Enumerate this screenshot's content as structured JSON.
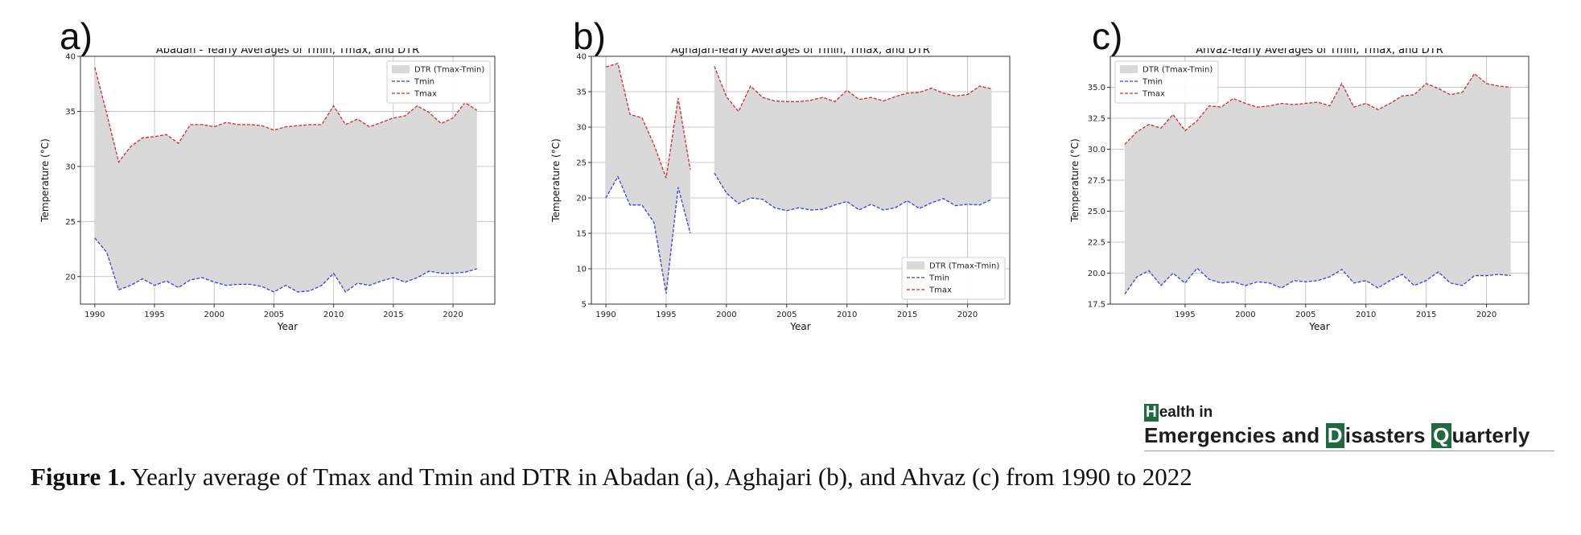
{
  "figure": {
    "caption_lead": "Figure 1.",
    "caption_text": " Yearly average of Tmax and Tmin and DTR in Abadan (a), Aghajari (b), and Ahvaz (c) from 1990 to 2022",
    "logo": {
      "line1_initial": "H",
      "line1_rest": "ealth in",
      "line2_a": "Emergencies and ",
      "line2_b_initial": "D",
      "line2_b_rest": "isasters ",
      "line2_c_initial": "Q",
      "line2_c_rest": "uarterly"
    }
  },
  "colors": {
    "tmin": "#3b3fd8",
    "tmax": "#d62a2a",
    "fill": "#d9d9d9",
    "grid": "#b9b9b9"
  },
  "chart_data": [
    {
      "type": "area",
      "panel_label": "a)",
      "title": "Abadan - Yearly Averages of Tmin, Tmax, and DTR",
      "xlabel": "Year",
      "ylabel": "Temperature (°C)",
      "xlim": [
        1988.8,
        2023.5
      ],
      "ylim": [
        17.5,
        40
      ],
      "xticks": [
        1990,
        1995,
        2000,
        2005,
        2010,
        2015,
        2020
      ],
      "yticks": [
        20,
        25,
        30,
        35,
        40
      ],
      "legend_position": "top-right",
      "legend": [
        "DTR (Tmax-Tmin)",
        "Tmin",
        "Tmax"
      ],
      "grid": true,
      "x": [
        1990,
        1991,
        1992,
        1993,
        1994,
        1995,
        1996,
        1997,
        1998,
        1999,
        2000,
        2001,
        2002,
        2003,
        2004,
        2005,
        2006,
        2007,
        2008,
        2009,
        2010,
        2011,
        2012,
        2013,
        2014,
        2015,
        2016,
        2017,
        2018,
        2019,
        2020,
        2021,
        2022
      ],
      "series": [
        {
          "name": "Tmin",
          "values": [
            23.5,
            22.2,
            18.8,
            19.2,
            19.8,
            19.2,
            19.6,
            19.0,
            19.7,
            19.9,
            19.5,
            19.2,
            19.3,
            19.3,
            19.1,
            18.6,
            19.2,
            18.6,
            18.7,
            19.2,
            20.3,
            18.6,
            19.4,
            19.2,
            19.6,
            19.9,
            19.5,
            19.9,
            20.5,
            20.3,
            20.3,
            20.4,
            20.7
          ]
        },
        {
          "name": "Tmax",
          "values": [
            39.0,
            34.8,
            30.4,
            31.8,
            32.6,
            32.7,
            32.9,
            32.1,
            33.8,
            33.8,
            33.6,
            34.0,
            33.8,
            33.8,
            33.7,
            33.3,
            33.6,
            33.7,
            33.8,
            33.8,
            35.5,
            33.8,
            34.3,
            33.6,
            34.0,
            34.4,
            34.6,
            35.5,
            34.9,
            33.9,
            34.4,
            35.8,
            35.1
          ]
        }
      ]
    },
    {
      "type": "area",
      "panel_label": "b)",
      "title": "Aghajari-Yearly Averages of Tmin, Tmax, and DTR",
      "xlabel": "Year",
      "ylabel": "Temperature (°C)",
      "xlim": [
        1988.8,
        2023.5
      ],
      "ylim": [
        5,
        40
      ],
      "xticks": [
        1990,
        1995,
        2000,
        2005,
        2010,
        2015,
        2020
      ],
      "yticks": [
        5,
        10,
        15,
        20,
        25,
        30,
        35,
        40
      ],
      "legend_position": "bottom-right",
      "legend": [
        "DTR (Tmax-Tmin)",
        "Tmin",
        "Tmax"
      ],
      "grid": true,
      "x": [
        1990,
        1991,
        1992,
        1993,
        1994,
        1995,
        1996,
        1997,
        1998,
        1999,
        2000,
        2001,
        2002,
        2003,
        2004,
        2005,
        2006,
        2007,
        2008,
        2009,
        2010,
        2011,
        2012,
        2013,
        2014,
        2015,
        2016,
        2017,
        2018,
        2019,
        2020,
        2021,
        2022
      ],
      "series": [
        {
          "name": "Tmin",
          "values": [
            20.0,
            23.0,
            19.0,
            19.0,
            16.5,
            6.5,
            21.5,
            15.0,
            null,
            23.5,
            20.7,
            19.2,
            20.0,
            19.8,
            18.6,
            18.2,
            18.6,
            18.3,
            18.4,
            19.0,
            19.5,
            18.3,
            19.1,
            18.3,
            18.6,
            19.6,
            18.5,
            19.3,
            19.9,
            18.9,
            19.1,
            19.0,
            19.8
          ]
        },
        {
          "name": "Tmax",
          "values": [
            38.5,
            39.0,
            31.8,
            31.3,
            27.5,
            22.8,
            34.1,
            24.0,
            null,
            38.6,
            34.3,
            32.2,
            35.8,
            34.2,
            33.7,
            33.6,
            33.6,
            33.8,
            34.2,
            33.6,
            35.2,
            33.9,
            34.2,
            33.7,
            34.3,
            34.8,
            34.9,
            35.5,
            34.8,
            34.4,
            34.6,
            35.8,
            35.4
          ]
        }
      ]
    },
    {
      "type": "area",
      "panel_label": "c)",
      "title": "Ahvaz-Yearly Averages of Tmin, Tmax, and DTR",
      "xlabel": "Year",
      "ylabel": "Temperature (°C)",
      "xlim": [
        1988.8,
        2023.5
      ],
      "ylim": [
        17.5,
        37.5
      ],
      "xticks": [
        1995,
        2000,
        2005,
        2010,
        2015,
        2020
      ],
      "yticks": [
        17.5,
        20.0,
        22.5,
        25.0,
        27.5,
        30.0,
        32.5,
        35.0
      ],
      "legend_position": "top-left",
      "legend": [
        "DTR (Tmax-Tmin)",
        "Tmin",
        "Tmax"
      ],
      "grid": true,
      "x": [
        1990,
        1991,
        1992,
        1993,
        1994,
        1995,
        1996,
        1997,
        1998,
        1999,
        2000,
        2001,
        2002,
        2003,
        2004,
        2005,
        2006,
        2007,
        2008,
        2009,
        2010,
        2011,
        2012,
        2013,
        2014,
        2015,
        2016,
        2017,
        2018,
        2019,
        2020,
        2021,
        2022
      ],
      "series": [
        {
          "name": "Tmin",
          "values": [
            18.3,
            19.7,
            20.2,
            19.0,
            20.0,
            19.2,
            20.4,
            19.5,
            19.2,
            19.3,
            19.0,
            19.3,
            19.2,
            18.8,
            19.4,
            19.3,
            19.4,
            19.7,
            20.3,
            19.2,
            19.4,
            18.8,
            19.4,
            19.9,
            19.0,
            19.4,
            20.1,
            19.2,
            19.0,
            19.8,
            19.8,
            19.9,
            19.8
          ]
        },
        {
          "name": "Tmax",
          "values": [
            30.4,
            31.4,
            32.0,
            31.7,
            32.8,
            31.5,
            32.3,
            33.5,
            33.4,
            34.1,
            33.7,
            33.4,
            33.5,
            33.7,
            33.6,
            33.7,
            33.8,
            33.5,
            35.3,
            33.4,
            33.7,
            33.2,
            33.7,
            34.3,
            34.4,
            35.3,
            34.9,
            34.4,
            34.6,
            36.1,
            35.3,
            35.1,
            35.0
          ]
        }
      ]
    }
  ]
}
